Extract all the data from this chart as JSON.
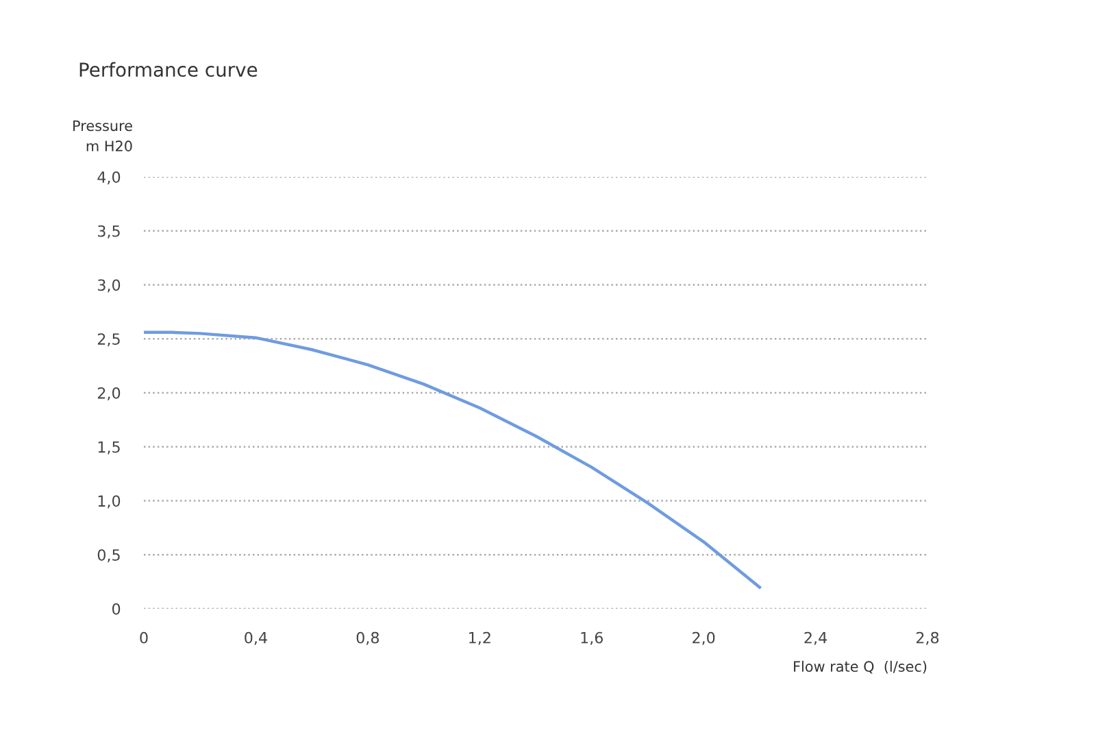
{
  "chart_data": {
    "type": "line",
    "title": "Performance curve",
    "ylabel": "Pressure\nm H20",
    "xlabel": "Flow rate Q  (l/sec)",
    "series": [
      {
        "color": "#6f9be0",
        "x": [
          0,
          0.1,
          0.2,
          0.4,
          0.6,
          0.8,
          1.0,
          1.2,
          1.4,
          1.6,
          1.8,
          2.0,
          2.2
        ],
        "values": [
          2.56,
          2.56,
          2.55,
          2.51,
          2.4,
          2.26,
          2.08,
          1.86,
          1.6,
          1.31,
          0.98,
          0.62,
          0.2
        ]
      }
    ],
    "xlim": [
      0,
      2.8
    ],
    "xticks": [
      {
        "value": 0,
        "label": "0"
      },
      {
        "value": 0.4,
        "label": "0,4"
      },
      {
        "value": 0.8,
        "label": "0,8"
      },
      {
        "value": 1.2,
        "label": "1,2"
      },
      {
        "value": 1.6,
        "label": "1,6"
      },
      {
        "value": 2.0,
        "label": "2,0"
      },
      {
        "value": 2.4,
        "label": "2,4"
      },
      {
        "value": 2.8,
        "label": "2,8"
      }
    ],
    "ylim": [
      0,
      4.0
    ],
    "yticks": [
      {
        "value": 0,
        "label": "0"
      },
      {
        "value": 0.5,
        "label": "0,5"
      },
      {
        "value": 1.0,
        "label": "1,0"
      },
      {
        "value": 1.5,
        "label": "1,5"
      },
      {
        "value": 2.0,
        "label": "2,0"
      },
      {
        "value": 2.5,
        "label": "2,5"
      },
      {
        "value": 3.0,
        "label": "3,0"
      },
      {
        "value": 3.5,
        "label": "3,5"
      },
      {
        "value": 4.0,
        "label": "4,0"
      }
    ],
    "grid": "y",
    "marker": "none",
    "line_style": "solid"
  }
}
